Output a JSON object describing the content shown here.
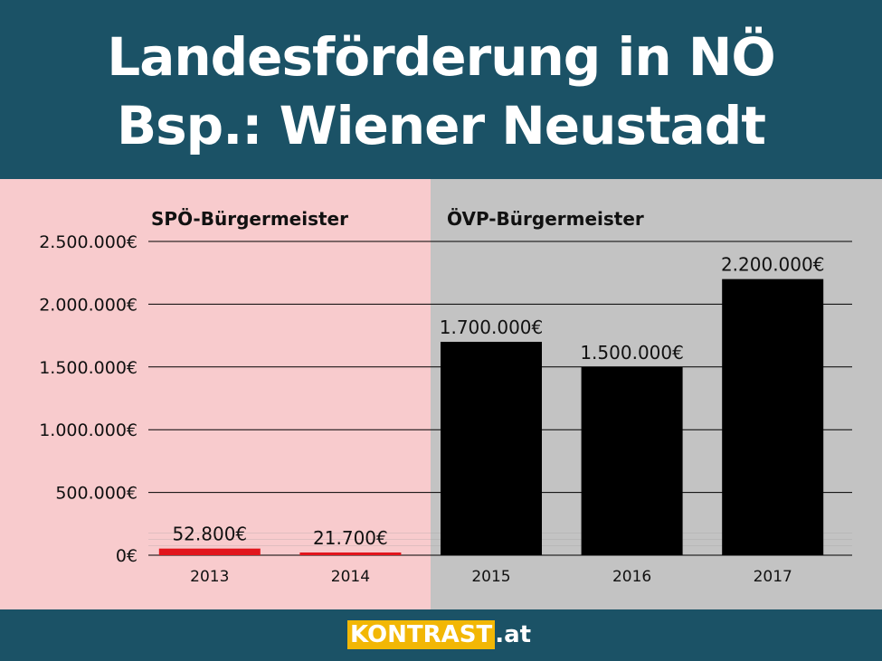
{
  "header": {
    "title_line1": "Landesförderung in NÖ",
    "title_line2": "Bsp.: Wiener Neustadt"
  },
  "groups": [
    {
      "label": "SPÖ-Bürgermeister",
      "color": "#f8cbcd"
    },
    {
      "label": "ÖVP-Bürgermeister",
      "color": "#c3c3c3"
    }
  ],
  "chart_data": {
    "type": "bar",
    "title": "Landesförderung in NÖ Bsp.: Wiener Neustadt",
    "xlabel": "",
    "ylabel": "",
    "categories": [
      "2013",
      "2014",
      "2015",
      "2016",
      "2017"
    ],
    "values": [
      52800,
      21700,
      1700000,
      1500000,
      2200000
    ],
    "value_labels": [
      "52.800€",
      "21.700€",
      "1.700.000€",
      "1.500.000€",
      "2.200.000€"
    ],
    "bar_colors": [
      "#e1151c",
      "#e1151c",
      "#000000",
      "#000000",
      "#000000"
    ],
    "ylim": [
      0,
      2500000
    ],
    "yticks": [
      0,
      500000,
      1000000,
      1500000,
      2000000,
      2500000
    ],
    "ytick_labels": [
      "0€",
      "500.000€",
      "1.000.000€",
      "1.500.000€",
      "2.000.000€",
      "2.500.000€"
    ],
    "grid": true,
    "legend": "none"
  },
  "footer": {
    "brand": "KONTRAST",
    "brand_suffix": ".at",
    "brand_color": "#f2b705"
  }
}
